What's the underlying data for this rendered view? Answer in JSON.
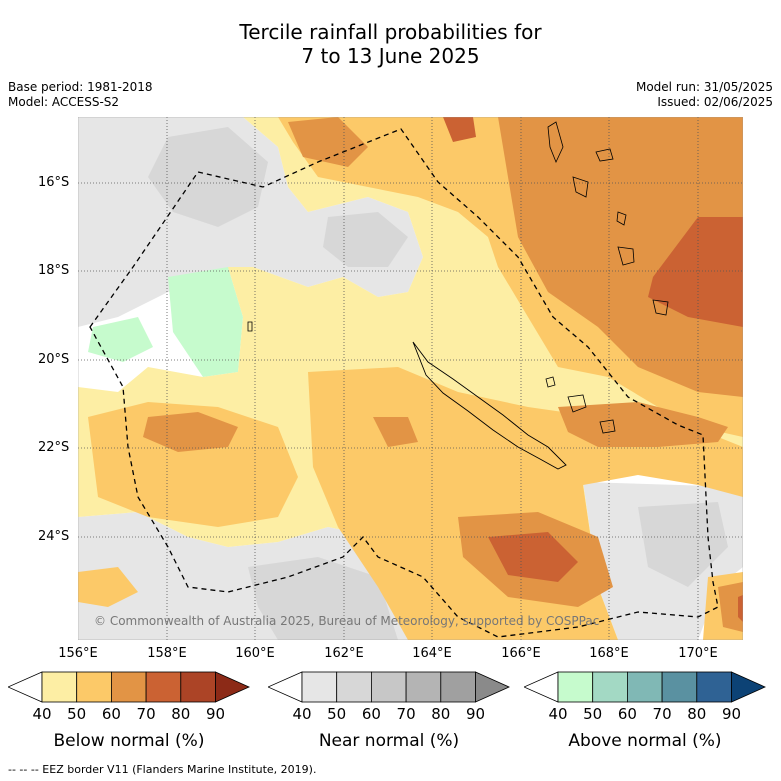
{
  "title": {
    "line1": "Tercile rainfall probabilities for",
    "line2": "7 to 13 June 2025"
  },
  "meta": {
    "base_period": "Base period: 1981-2018",
    "model": "Model: ACCESS-S2",
    "model_run": "Model run: 31/05/2025",
    "issued": "Issued: 02/06/2025"
  },
  "map": {
    "lat_labels": [
      "16°S",
      "18°S",
      "20°S",
      "22°S",
      "24°S"
    ],
    "lon_labels": [
      "156°E",
      "158°E",
      "160°E",
      "162°E",
      "164°E",
      "166°E",
      "168°E",
      "170°E"
    ],
    "copyright": "© Commonwealth of Australia 2025, Bureau of Meteorology, supported by COSPPac"
  },
  "colorbars": [
    {
      "title": "Below normal (%)",
      "ticks": [
        "40",
        "50",
        "60",
        "70",
        "80",
        "90"
      ],
      "colors": [
        "#ffffff",
        "#fdeea4",
        "#fcc968",
        "#e29445",
        "#cb6233",
        "#ac4426",
        "#8c2a17"
      ]
    },
    {
      "title": "Near normal (%)",
      "ticks": [
        "40",
        "50",
        "60",
        "70",
        "80",
        "90"
      ],
      "colors": [
        "#ffffff",
        "#e6e6e6",
        "#d7d7d7",
        "#c7c7c7",
        "#b4b4b4",
        "#a0a0a0",
        "#8a8a8a"
      ]
    },
    {
      "title": "Above normal (%)",
      "ticks": [
        "40",
        "50",
        "60",
        "70",
        "80",
        "90"
      ],
      "colors": [
        "#ffffff",
        "#c6fbcd",
        "#a3d9c4",
        "#80b8b5",
        "#5a91a1",
        "#2f6294",
        "#0c4275"
      ]
    }
  ],
  "footer": "--  --  -- EEZ border V11 (Flanders Marine Institute, 2019)."
}
